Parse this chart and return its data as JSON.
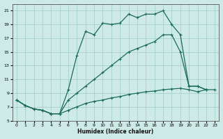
{
  "xlabel": "Humidex (Indice chaleur)",
  "bg_color": "#ceeae6",
  "grid_color": "#9ecdc8",
  "line_color": "#1a6b5a",
  "xlim": [
    -0.5,
    23.5
  ],
  "ylim": [
    5,
    22
  ],
  "yticks": [
    5,
    7,
    9,
    11,
    13,
    15,
    17,
    19,
    21
  ],
  "xticks": [
    0,
    1,
    2,
    3,
    4,
    5,
    6,
    7,
    8,
    9,
    10,
    11,
    12,
    13,
    14,
    15,
    16,
    17,
    18,
    19,
    20,
    21,
    22,
    23
  ],
  "line1_x": [
    0,
    1,
    2,
    3,
    4,
    5,
    6,
    7,
    8,
    9,
    10,
    11,
    12,
    13,
    14,
    15,
    16,
    17,
    18,
    19,
    20,
    21,
    22
  ],
  "line1_y": [
    8,
    7.2,
    6.7,
    6.5,
    6.0,
    6.0,
    9.5,
    14.5,
    18.0,
    17.5,
    19.2,
    19.0,
    19.2,
    20.5,
    20.0,
    20.5,
    20.5,
    21.0,
    19.0,
    17.5,
    10.0,
    10.0,
    9.5
  ],
  "line2_x": [
    0,
    1,
    2,
    3,
    4,
    5,
    6,
    7,
    8,
    9,
    10,
    11,
    12,
    13,
    14,
    15,
    16,
    17,
    18,
    19,
    20,
    21,
    22
  ],
  "line2_y": [
    8,
    7.2,
    6.7,
    6.5,
    6.0,
    6.0,
    8.0,
    9.0,
    10.0,
    11.0,
    12.0,
    13.0,
    14.0,
    15.0,
    15.5,
    16.0,
    16.5,
    17.5,
    17.5,
    15.0,
    10.0,
    10.0,
    9.5
  ],
  "line3_x": [
    0,
    1,
    2,
    3,
    4,
    5,
    6,
    7,
    8,
    9,
    10,
    11,
    12,
    13,
    14,
    15,
    16,
    17,
    18,
    19,
    20,
    21,
    22,
    23
  ],
  "line3_y": [
    8,
    7.2,
    6.7,
    6.5,
    6.0,
    6.0,
    6.5,
    7.0,
    7.5,
    7.8,
    8.0,
    8.3,
    8.5,
    8.8,
    9.0,
    9.2,
    9.3,
    9.5,
    9.6,
    9.7,
    9.5,
    9.2,
    9.5,
    9.5
  ]
}
